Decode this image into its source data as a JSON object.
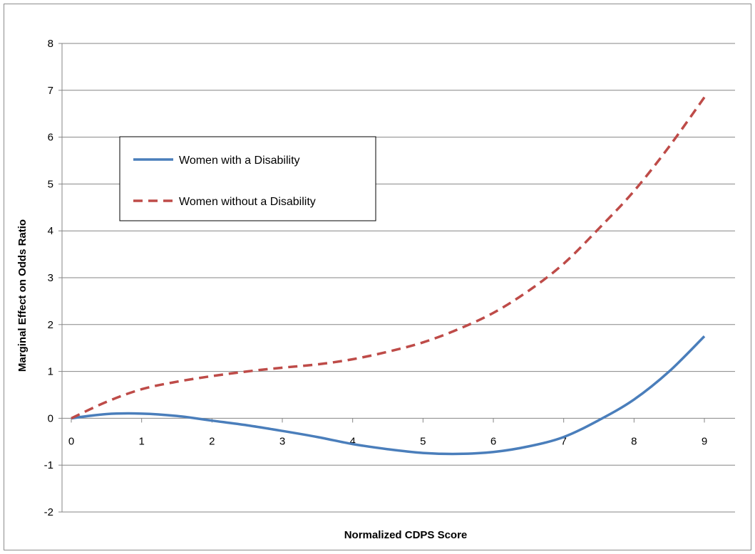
{
  "chart_data": {
    "type": "line",
    "title": "",
    "xlabel": "Normalized CDPS Score",
    "ylabel": "Marginal Effect on Odds Ratio",
    "xlim": [
      0,
      9
    ],
    "ylim": [
      -2,
      8
    ],
    "x_ticks": [
      "0",
      "1",
      "2",
      "3",
      "4",
      "5",
      "6",
      "7",
      "8",
      "9"
    ],
    "y_ticks": [
      "-2",
      "-1",
      "0",
      "1",
      "2",
      "3",
      "4",
      "5",
      "6",
      "7",
      "8"
    ],
    "grid": "horizontal",
    "legend_position": "upper-left",
    "series": [
      {
        "name": "Women with a Disability",
        "color": "#4a7ebb",
        "dash": "solid",
        "x": [
          0,
          0.5,
          1,
          1.5,
          2,
          2.5,
          3,
          3.5,
          4,
          4.5,
          5,
          5.5,
          6,
          6.5,
          7,
          7.5,
          8,
          8.5,
          9
        ],
        "y": [
          0,
          0.09,
          0.1,
          0.05,
          -0.05,
          -0.15,
          -0.27,
          -0.4,
          -0.55,
          -0.66,
          -0.74,
          -0.76,
          -0.72,
          -0.6,
          -0.4,
          -0.04,
          0.4,
          1.0,
          1.75
        ]
      },
      {
        "name": "Women without a Disability",
        "color": "#be4b48",
        "dash": "dashed",
        "x": [
          0,
          0.5,
          1,
          1.5,
          2,
          2.5,
          3,
          3.5,
          4,
          4.5,
          5,
          5.5,
          6,
          6.5,
          7,
          7.5,
          8,
          8.5,
          9
        ],
        "y": [
          0,
          0.35,
          0.62,
          0.78,
          0.9,
          1.0,
          1.08,
          1.15,
          1.26,
          1.42,
          1.62,
          1.9,
          2.25,
          2.72,
          3.3,
          4.05,
          4.85,
          5.8,
          6.85
        ]
      }
    ]
  }
}
